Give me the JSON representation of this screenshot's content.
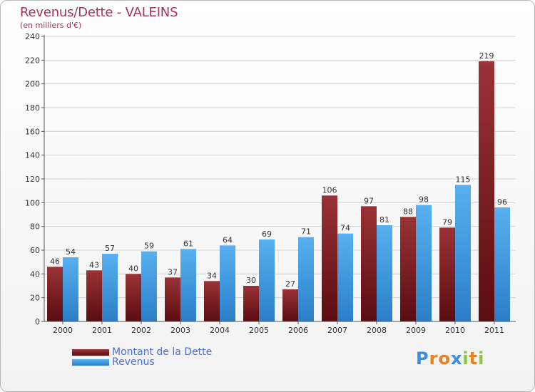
{
  "chart_data": {
    "type": "bar",
    "title": "Revenus/Dette - VALEINS",
    "subtitle": "(en milliers d'€)",
    "categories": [
      "2000",
      "2001",
      "2002",
      "2003",
      "2004",
      "2005",
      "2006",
      "2007",
      "2008",
      "2009",
      "2010",
      "2011"
    ],
    "series": [
      {
        "name": "Montant de la Dette",
        "color": "#7a1f22",
        "values": [
          46,
          43,
          40,
          37,
          34,
          30,
          27,
          106,
          97,
          88,
          79,
          219
        ]
      },
      {
        "name": "Revenus",
        "color": "#4aa3e8",
        "values": [
          54,
          57,
          59,
          61,
          64,
          69,
          71,
          74,
          81,
          98,
          115,
          96
        ]
      }
    ],
    "ylim": [
      0,
      240
    ],
    "yticks": [
      0,
      20,
      40,
      60,
      80,
      100,
      120,
      140,
      160,
      180,
      200,
      220,
      240
    ],
    "grid": true,
    "legend_position": "bottom-left"
  },
  "branding": {
    "letters": [
      "P",
      "r",
      "o",
      "x",
      "i",
      "t",
      "i"
    ],
    "colors": [
      "#3d8fd6",
      "#e8831e",
      "#e8831e",
      "#3d8fd6",
      "#8cc63f",
      "#e8831e",
      "#8cc63f"
    ]
  }
}
